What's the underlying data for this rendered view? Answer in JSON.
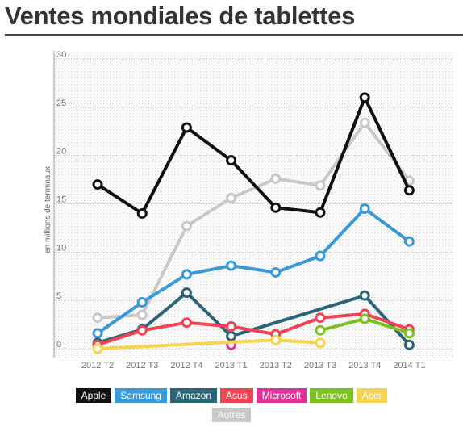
{
  "title": "Ventes mondiales de tablettes",
  "chart_data": {
    "type": "line",
    "title": "Ventes mondiales de tablettes",
    "xlabel": "",
    "ylabel": "en millions de terminaux",
    "ylim": [
      0,
      30
    ],
    "yticks": [
      0,
      5,
      10,
      15,
      20,
      25,
      30
    ],
    "grid": true,
    "legend_position": "bottom",
    "categories": [
      "2012 T2",
      "2012 T3",
      "2012 T4",
      "2013 T1",
      "2013 T2",
      "2013 T3",
      "2013 T4",
      "2014 T1"
    ],
    "series": [
      {
        "name": "Autres",
        "color": "#c8c8c8",
        "values": [
          3.2,
          3.5,
          12.7,
          15.6,
          17.6,
          16.9,
          23.4,
          17.4
        ]
      },
      {
        "name": "Samsung",
        "color": "#3a9ad9",
        "values": [
          1.6,
          4.8,
          7.7,
          8.6,
          7.9,
          9.6,
          14.5,
          11.1
        ]
      },
      {
        "name": "Amazon",
        "color": "#2c6478",
        "values": [
          0.6,
          2.0,
          5.8,
          1.3,
          null,
          null,
          5.5,
          0.4
        ]
      },
      {
        "name": "Asus",
        "color": "#ee4455",
        "values": [
          0.4,
          1.9,
          2.7,
          2.3,
          1.5,
          3.2,
          3.6,
          2.0
        ]
      },
      {
        "name": "Microsoft",
        "color": "#dd3399",
        "values": [
          null,
          null,
          null,
          0.4,
          null,
          null,
          null,
          null
        ]
      },
      {
        "name": "Lenovo",
        "color": "#7bc121",
        "values": [
          null,
          null,
          null,
          null,
          null,
          1.9,
          3.1,
          1.6
        ]
      },
      {
        "name": "Acer",
        "color": "#f5d44f",
        "values": [
          0,
          null,
          null,
          null,
          0.9,
          0.6,
          null,
          null
        ]
      },
      {
        "name": "Apple",
        "color": "#111111",
        "values": [
          17.0,
          14.0,
          22.9,
          19.5,
          14.6,
          14.1,
          26.0,
          16.4
        ]
      }
    ]
  },
  "legend": {
    "rows": [
      [
        {
          "label": "Apple",
          "color": "#111111"
        },
        {
          "label": "Samsung",
          "color": "#3a9ad9"
        },
        {
          "label": "Amazon",
          "color": "#2c6478"
        },
        {
          "label": "Asus",
          "color": "#ee4455"
        },
        {
          "label": "Microsoft",
          "color": "#dd3399"
        },
        {
          "label": "Lenovo",
          "color": "#7bc121"
        },
        {
          "label": "Acer",
          "color": "#f5d44f"
        }
      ],
      [
        {
          "label": "Autres",
          "color": "#c8c8c8"
        }
      ]
    ]
  }
}
